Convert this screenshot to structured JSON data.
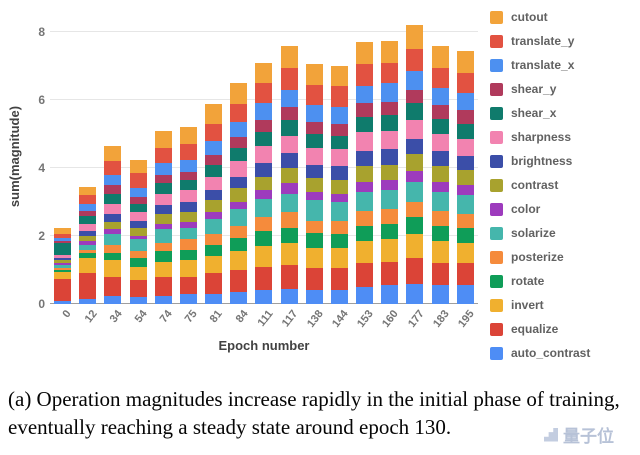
{
  "chart_data": {
    "type": "bar",
    "stacked": true,
    "title": "",
    "xlabel": "Epoch number",
    "ylabel": "sum(magnitude)",
    "legend_position": "right",
    "grid": true,
    "ylim": [
      0,
      8.5
    ],
    "yticks": [
      0,
      2,
      4,
      6,
      8
    ],
    "categories": [
      "0",
      "12",
      "34",
      "54",
      "74",
      "75",
      "81",
      "84",
      "111",
      "117",
      "138",
      "144",
      "153",
      "160",
      "177",
      "183",
      "195"
    ],
    "series_note": "series listed top-of-stack first (legend order); values are per-epoch magnitudes",
    "series": [
      {
        "name": "cutout",
        "color": "#F2A33A",
        "values": [
          0.2,
          0.25,
          0.45,
          0.4,
          0.5,
          0.5,
          0.6,
          0.6,
          0.6,
          0.65,
          0.6,
          0.6,
          0.65,
          0.65,
          0.7,
          0.65,
          0.65
        ]
      },
      {
        "name": "translate_y",
        "color": "#E25241",
        "values": [
          0.1,
          0.25,
          0.4,
          0.45,
          0.45,
          0.45,
          0.5,
          0.55,
          0.6,
          0.65,
          0.6,
          0.6,
          0.65,
          0.6,
          0.65,
          0.6,
          0.6
        ]
      },
      {
        "name": "translate_x",
        "color": "#4D90F0",
        "values": [
          0.1,
          0.2,
          0.3,
          0.25,
          0.35,
          0.35,
          0.4,
          0.45,
          0.5,
          0.5,
          0.5,
          0.5,
          0.5,
          0.55,
          0.55,
          0.5,
          0.5
        ]
      },
      {
        "name": "shear_y",
        "color": "#B03A5C",
        "values": [
          0.05,
          0.15,
          0.25,
          0.2,
          0.25,
          0.25,
          0.3,
          0.3,
          0.35,
          0.4,
          0.35,
          0.35,
          0.4,
          0.4,
          0.4,
          0.4,
          0.4
        ]
      },
      {
        "name": "shear_x",
        "color": "#0F7B6C",
        "values": [
          0.35,
          0.25,
          0.3,
          0.25,
          0.3,
          0.3,
          0.35,
          0.4,
          0.4,
          0.45,
          0.4,
          0.4,
          0.45,
          0.45,
          0.5,
          0.45,
          0.45
        ]
      },
      {
        "name": "sharpness",
        "color": "#F283B0",
        "values": [
          0.1,
          0.2,
          0.3,
          0.25,
          0.35,
          0.35,
          0.4,
          0.45,
          0.5,
          0.5,
          0.5,
          0.5,
          0.55,
          0.55,
          0.55,
          0.5,
          0.5
        ]
      },
      {
        "name": "brightness",
        "color": "#3B4EA8",
        "values": [
          0.05,
          0.15,
          0.25,
          0.2,
          0.25,
          0.3,
          0.3,
          0.35,
          0.4,
          0.45,
          0.4,
          0.4,
          0.45,
          0.45,
          0.45,
          0.45,
          0.4
        ]
      },
      {
        "name": "contrast",
        "color": "#A8A22E",
        "values": [
          0.1,
          0.15,
          0.2,
          0.25,
          0.3,
          0.3,
          0.35,
          0.4,
          0.4,
          0.45,
          0.4,
          0.4,
          0.45,
          0.45,
          0.5,
          0.45,
          0.45
        ]
      },
      {
        "name": "color",
        "color": "#9D3BBD",
        "values": [
          0.05,
          0.1,
          0.15,
          0.1,
          0.15,
          0.15,
          0.2,
          0.2,
          0.25,
          0.3,
          0.25,
          0.25,
          0.3,
          0.3,
          0.3,
          0.3,
          0.3
        ]
      },
      {
        "name": "solarize",
        "color": "#45B6AC",
        "values": [
          0.1,
          0.15,
          0.3,
          0.35,
          0.4,
          0.35,
          0.45,
          0.5,
          0.55,
          0.55,
          0.6,
          0.55,
          0.55,
          0.55,
          0.6,
          0.55,
          0.55
        ]
      },
      {
        "name": "posterize",
        "color": "#F58B3C",
        "values": [
          0.05,
          0.1,
          0.25,
          0.2,
          0.25,
          0.3,
          0.3,
          0.35,
          0.4,
          0.45,
          0.35,
          0.4,
          0.45,
          0.45,
          0.45,
          0.45,
          0.4
        ]
      },
      {
        "name": "rotate",
        "color": "#0F9D58",
        "values": [
          0.05,
          0.15,
          0.2,
          0.25,
          0.3,
          0.3,
          0.35,
          0.4,
          0.45,
          0.45,
          0.45,
          0.4,
          0.45,
          0.45,
          0.5,
          0.45,
          0.45
        ]
      },
      {
        "name": "invert",
        "color": "#F0B02F",
        "values": [
          0.2,
          0.45,
          0.5,
          0.4,
          0.45,
          0.5,
          0.5,
          0.55,
          0.6,
          0.65,
          0.6,
          0.6,
          0.65,
          0.65,
          0.7,
          0.65,
          0.6
        ]
      },
      {
        "name": "equalize",
        "color": "#DB4437",
        "values": [
          0.65,
          0.75,
          0.55,
          0.5,
          0.55,
          0.5,
          0.6,
          0.65,
          0.7,
          0.7,
          0.65,
          0.65,
          0.7,
          0.7,
          0.75,
          0.65,
          0.65
        ]
      },
      {
        "name": "auto_contrast",
        "color": "#4E8DF5",
        "values": [
          0.1,
          0.15,
          0.25,
          0.2,
          0.25,
          0.3,
          0.3,
          0.35,
          0.4,
          0.45,
          0.4,
          0.4,
          0.5,
          0.55,
          0.6,
          0.55,
          0.55
        ]
      }
    ]
  },
  "caption": {
    "text": "(a) Operation magnitudes increase rapidly in the initial phase of training, eventually reaching a steady state around epoch 130."
  },
  "watermark": {
    "text": "量子位"
  }
}
